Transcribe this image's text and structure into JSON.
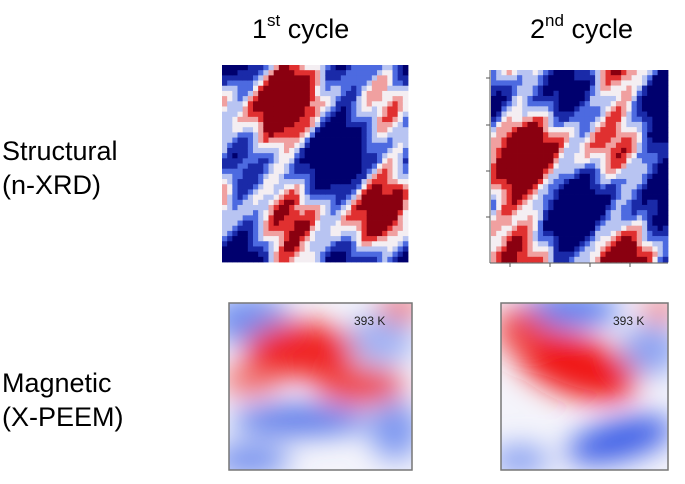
{
  "columns": [
    {
      "base": "1",
      "sup": "st",
      "rest": " cycle"
    },
    {
      "base": "2",
      "sup": "nd",
      "rest": " cycle"
    }
  ],
  "rows": [
    {
      "line1": "Structural",
      "line2": "(n-XRD)"
    },
    {
      "line1": "Magnetic",
      "line2": "(X-PEEM)"
    }
  ],
  "panels": {
    "magnetic_labels": [
      "393 K",
      "393 K"
    ]
  }
}
